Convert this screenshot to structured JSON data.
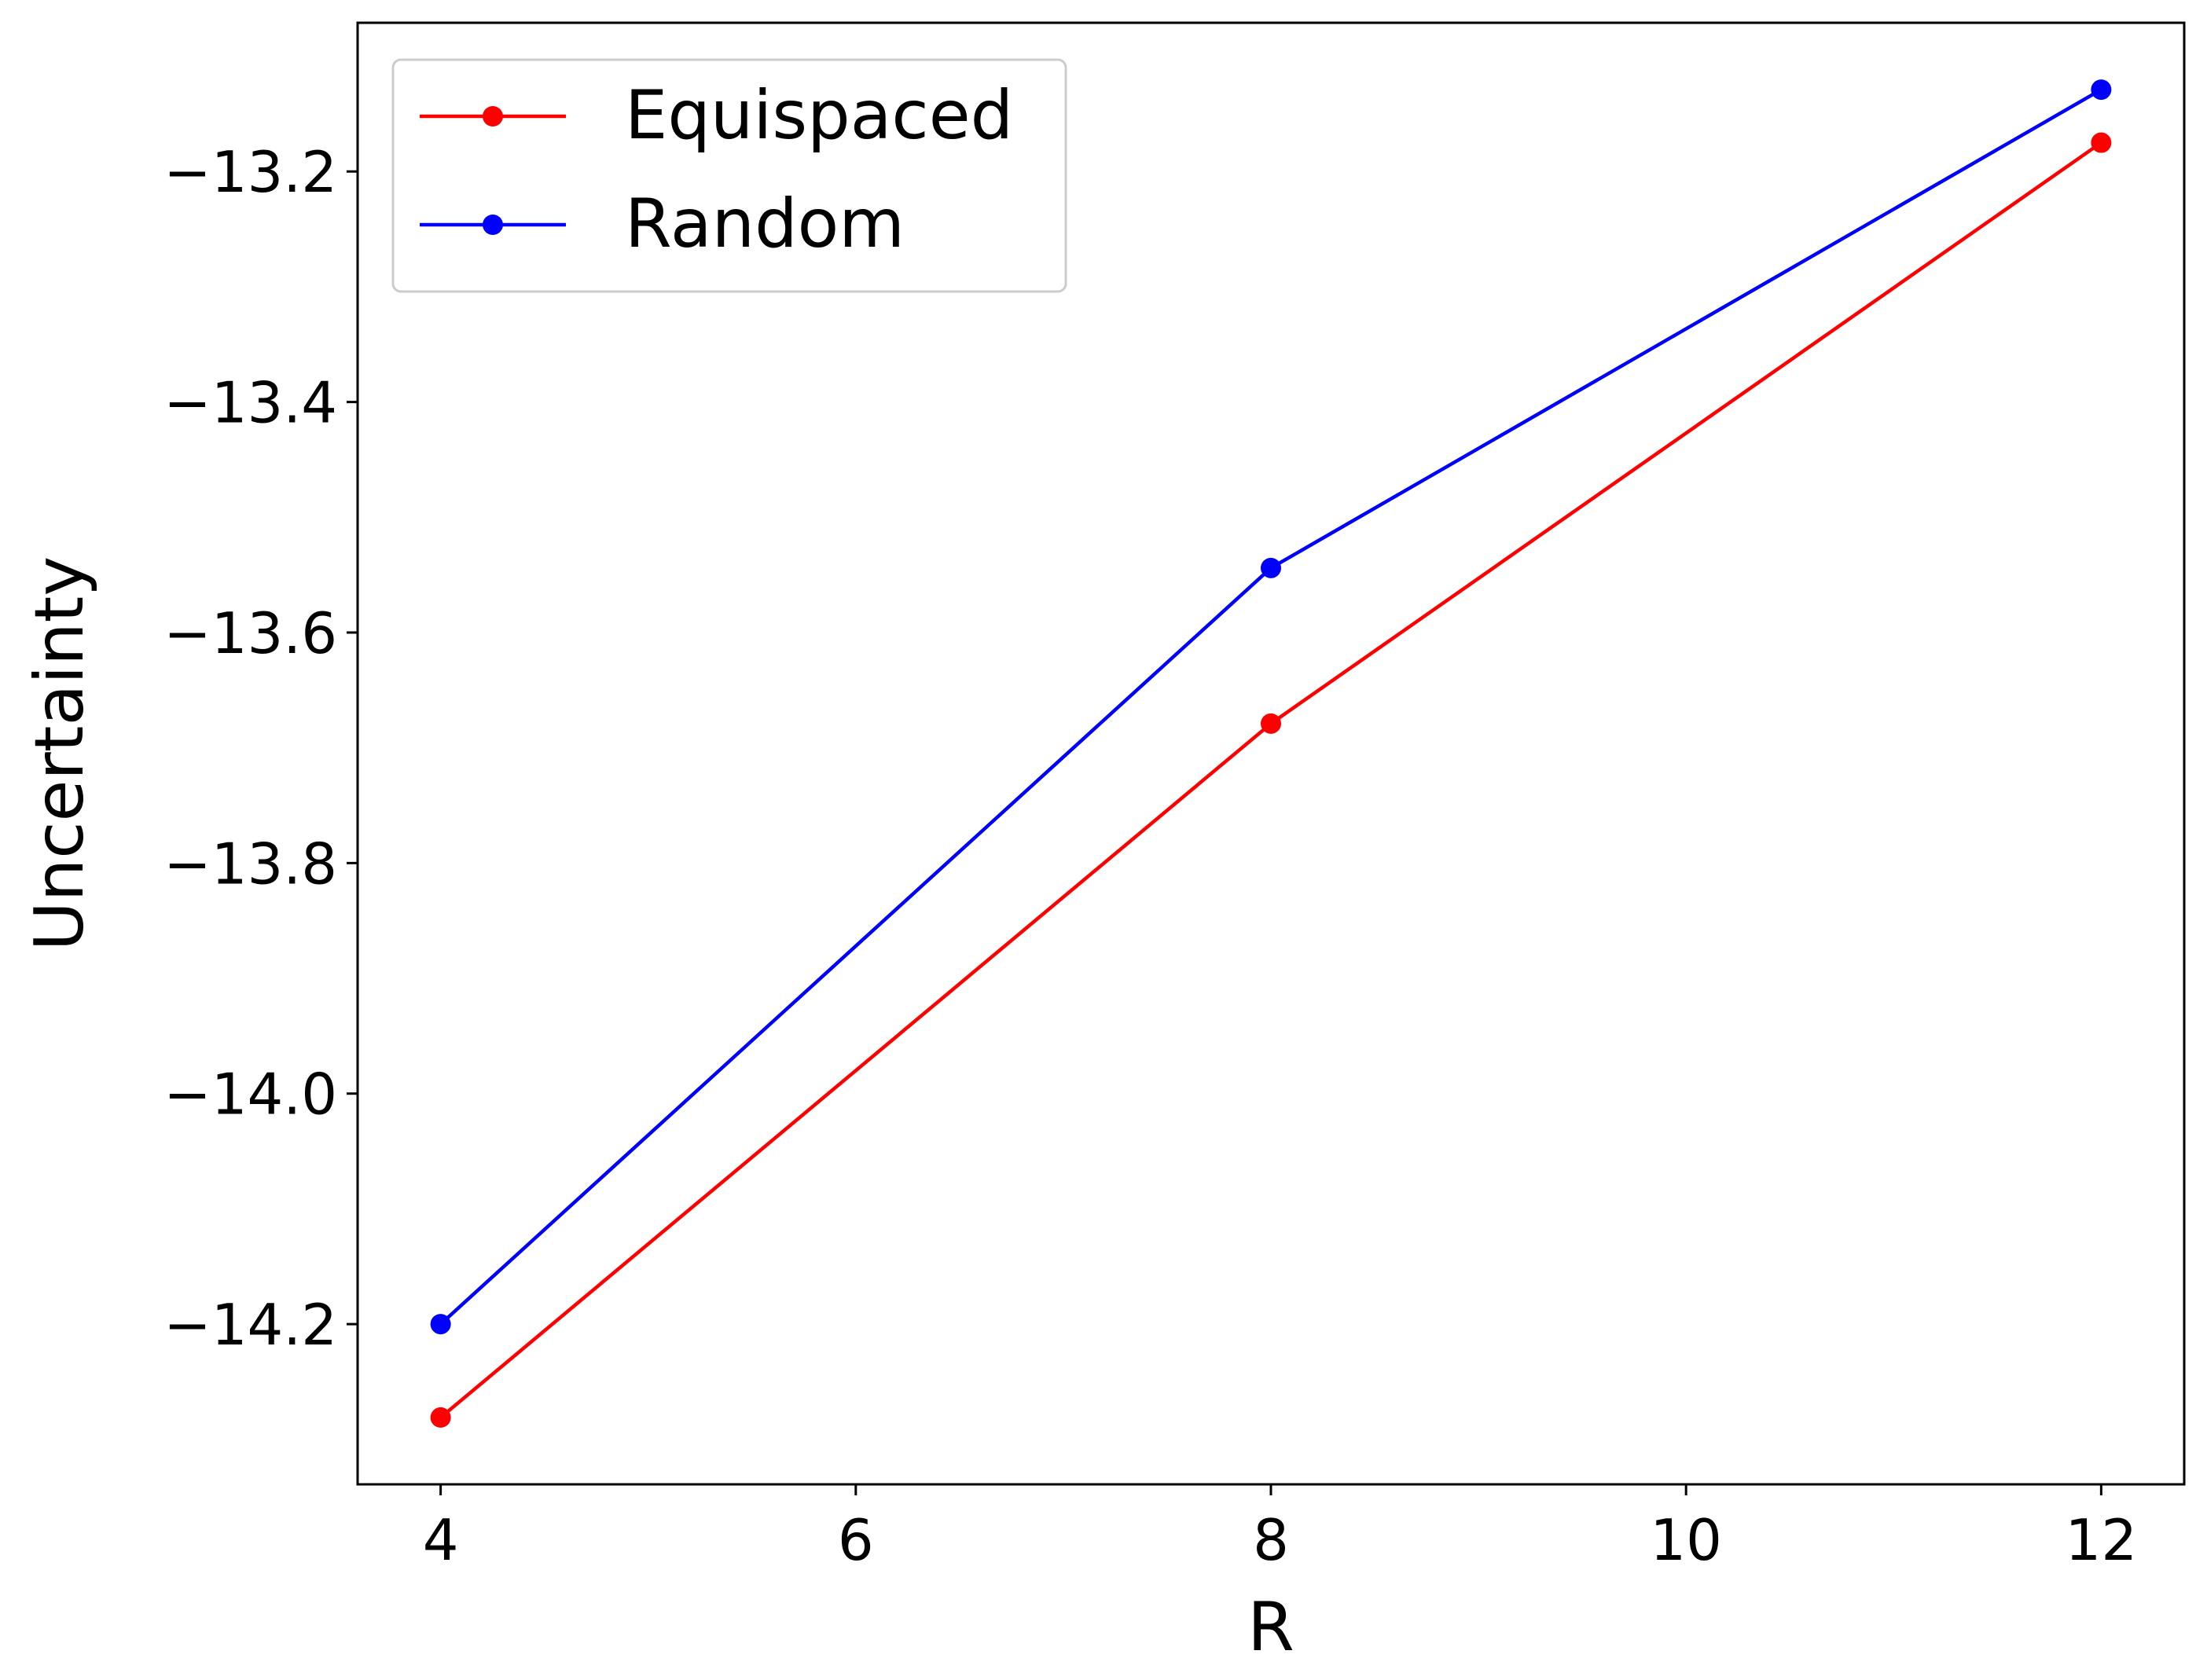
{
  "chart_data": {
    "type": "line",
    "xlabel": "R",
    "ylabel": "Uncertainty",
    "ylabel_color": "#ff0000",
    "x": [
      4,
      8,
      12
    ],
    "series": [
      {
        "name": "Equispaced",
        "color": "#ff0000",
        "values": [
          -14.281,
          -13.679,
          -13.175
        ]
      },
      {
        "name": "Random",
        "color": "#0000ff",
        "values": [
          -14.2,
          -13.544,
          -13.129
        ]
      }
    ],
    "xlim": [
      3.6,
      12.4
    ],
    "xticks": [
      4,
      6,
      8,
      10,
      12
    ],
    "ylim": [
      -14.339,
      -13.071
    ],
    "yticks": [
      {
        "value": -14.2,
        "label": "−14.2"
      },
      {
        "value": -14.0,
        "label": "−14.0"
      },
      {
        "value": -13.8,
        "label": "−13.8"
      },
      {
        "value": -13.6,
        "label": "−13.6"
      },
      {
        "value": -13.4,
        "label": "−13.4"
      },
      {
        "value": -13.2,
        "label": "−13.2"
      }
    ],
    "legend": "upper left",
    "grid": false
  }
}
